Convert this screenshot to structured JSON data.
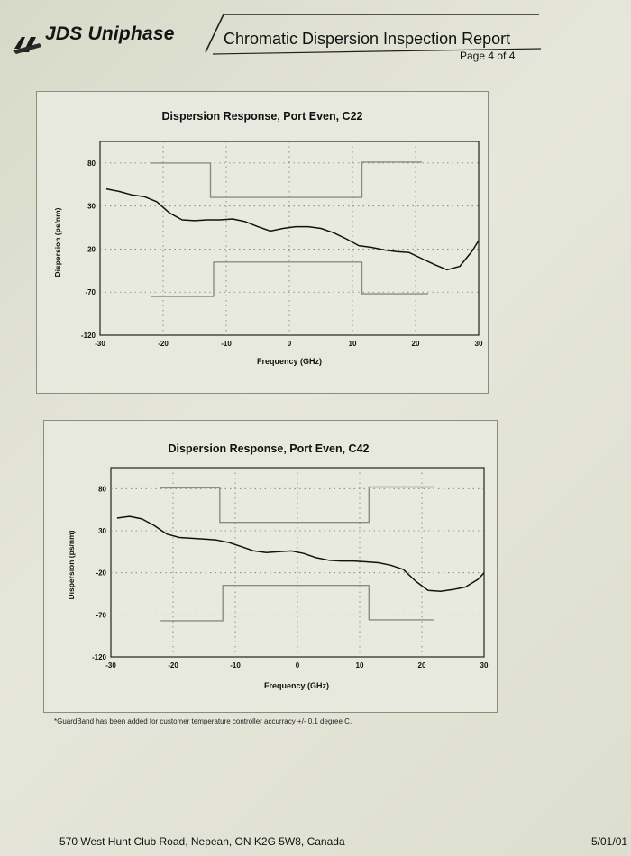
{
  "header": {
    "company": "JDS Uniphase",
    "report_title": "Chromatic Dispersion Inspection Report",
    "page": "Page 4 of 4"
  },
  "footnote": "*GuardBand has been added for customer temperature controller accurracy +/- 0.1 degree C.",
  "footer": {
    "address": "570 West Hunt Club Road, Nepean, ON K2G 5W8, Canada",
    "date": "5/01/01"
  },
  "colors": {
    "curve": "#111111",
    "guardband": "#8a8a8a",
    "grid": "#777777"
  },
  "chart_data": [
    {
      "type": "line",
      "title": "Dispersion Response, Port Even, C22",
      "xlabel": "Frequency (GHz)",
      "ylabel": "Dispersion (ps/nm)",
      "xlim": [
        -30,
        30
      ],
      "ylim": [
        -120,
        105
      ],
      "xticks": [
        "-30",
        "-20",
        "-10",
        "0",
        "10",
        "20",
        "30"
      ],
      "yticks": [
        "80",
        "30",
        "-20",
        "-70",
        "-120"
      ],
      "grid": "dotted",
      "series": [
        {
          "role": "measured",
          "x": [
            -29,
            -27,
            -25,
            -23,
            -21,
            -19,
            -17,
            -15,
            -13,
            -11,
            -9,
            -7,
            -5,
            -3,
            -1,
            1,
            3,
            5,
            7,
            9,
            11,
            13,
            15,
            17,
            19,
            21,
            23,
            25,
            27,
            29,
            30
          ],
          "y": [
            50,
            47,
            43,
            41,
            35,
            22,
            14,
            13,
            14,
            14,
            15,
            12,
            6,
            1,
            4,
            6,
            6,
            4,
            -1,
            -8,
            -16,
            -18,
            -21,
            -23,
            -24,
            -31,
            -38,
            -44,
            -40,
            -22,
            -10
          ]
        },
        {
          "role": "upper-guardband",
          "x": [
            -22,
            -12.5,
            -12.5,
            11.5,
            11.5,
            21
          ],
          "y": [
            80,
            80,
            40,
            40,
            81,
            81
          ]
        },
        {
          "role": "lower-guardband",
          "x": [
            -22,
            -12,
            -12,
            11.5,
            11.5,
            22
          ],
          "y": [
            -75,
            -75,
            -35,
            -35,
            -72,
            -72
          ]
        }
      ]
    },
    {
      "type": "line",
      "title": "Dispersion Response, Port Even, C42",
      "xlabel": "Frequency (GHz)",
      "ylabel": "Dispersion (ps/nm)",
      "xlim": [
        -30,
        30
      ],
      "ylim": [
        -120,
        105
      ],
      "xticks": [
        "-30",
        "-20",
        "-10",
        "0",
        "10",
        "20",
        "30"
      ],
      "yticks": [
        "80",
        "30",
        "-20",
        "-70",
        "-120"
      ],
      "grid": "dotted",
      "series": [
        {
          "role": "measured",
          "x": [
            -29,
            -27,
            -25,
            -23,
            -21,
            -19,
            -17,
            -15,
            -13,
            -11,
            -9,
            -7,
            -5,
            -3,
            -1,
            1,
            3,
            5,
            7,
            9,
            11,
            13,
            15,
            17,
            19,
            21,
            23,
            25,
            27,
            29,
            30
          ],
          "y": [
            45,
            47,
            44,
            36,
            26,
            22,
            21,
            20,
            19,
            16,
            11,
            6,
            4,
            5,
            6,
            3,
            -2,
            -5,
            -6,
            -6,
            -7,
            -8,
            -11,
            -16,
            -30,
            -41,
            -42,
            -40,
            -37,
            -28,
            -20
          ]
        },
        {
          "role": "upper-guardband",
          "x": [
            -22,
            -12.5,
            -12.5,
            11.5,
            11.5,
            22
          ],
          "y": [
            81,
            81,
            40,
            40,
            82,
            82
          ]
        },
        {
          "role": "lower-guardband",
          "x": [
            -22,
            -12,
            -12,
            11.5,
            11.5,
            22
          ],
          "y": [
            -77,
            -77,
            -35,
            -35,
            -76,
            -76
          ]
        }
      ]
    }
  ]
}
